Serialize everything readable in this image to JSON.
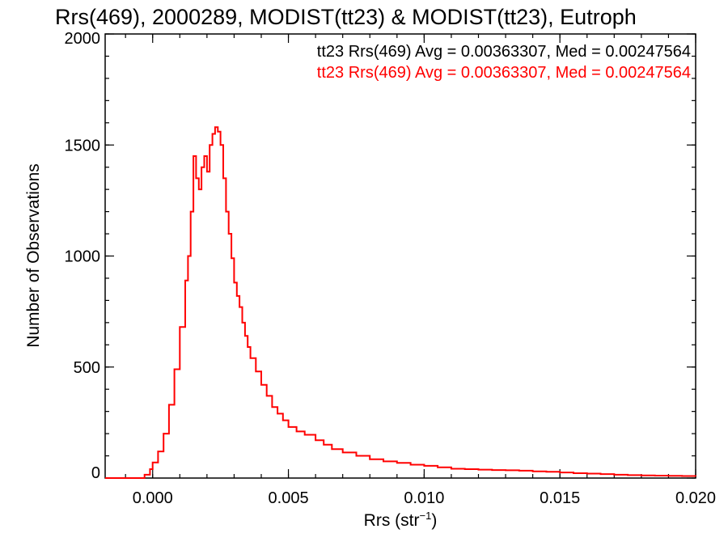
{
  "chart_data": {
    "type": "line",
    "title": "Rrs(469), 2000289, MODIST(tt23) & MODIST(tt23), Eutroph",
    "xlabel": "Rrs (str",
    "xlabel_sup": "−1",
    "xlabel_close": ")",
    "ylabel": "Number of Observations",
    "xlim": [
      -0.00175,
      0.02
    ],
    "ylim": [
      0,
      2000
    ],
    "x_ticks": [
      0.0,
      0.005,
      0.01,
      0.015,
      0.02
    ],
    "x_tick_labels": [
      "0.000",
      "0.005",
      "0.010",
      "0.015",
      "0.020"
    ],
    "y_ticks": [
      0,
      500,
      1000,
      1500,
      2000
    ],
    "y_tick_labels": [
      "0",
      "500",
      "1000",
      "1500",
      "2000"
    ],
    "grid": false,
    "legend_position": "top-right",
    "annotations": [
      {
        "text": "tt23 Rrs(469) Avg = 0.00363307, Med = 0.00247564",
        "color": "#000000"
      },
      {
        "text": "tt23 Rrs(469) Avg = 0.00363307, Med = 0.00247564",
        "color": "#ff0000"
      }
    ],
    "series": [
      {
        "color": "#ff0000",
        "step": true,
        "points": [
          [
            -0.0018,
            0
          ],
          [
            -0.0006,
            0
          ],
          [
            -0.0003,
            15
          ],
          [
            -0.0001,
            40
          ],
          [
            0.0,
            70
          ],
          [
            0.0002,
            120
          ],
          [
            0.0004,
            200
          ],
          [
            0.0006,
            330
          ],
          [
            0.0008,
            490
          ],
          [
            0.001,
            680
          ],
          [
            0.0012,
            890
          ],
          [
            0.0013,
            1000
          ],
          [
            0.0014,
            1200
          ],
          [
            0.0015,
            1450
          ],
          [
            0.0016,
            1350
          ],
          [
            0.0017,
            1300
          ],
          [
            0.0018,
            1400
          ],
          [
            0.0019,
            1450
          ],
          [
            0.002,
            1380
          ],
          [
            0.0021,
            1500
          ],
          [
            0.0022,
            1550
          ],
          [
            0.0023,
            1580
          ],
          [
            0.0024,
            1560
          ],
          [
            0.0025,
            1500
          ],
          [
            0.0026,
            1350
          ],
          [
            0.0027,
            1200
          ],
          [
            0.0028,
            1100
          ],
          [
            0.0029,
            990
          ],
          [
            0.003,
            880
          ],
          [
            0.0031,
            820
          ],
          [
            0.0032,
            770
          ],
          [
            0.0033,
            700
          ],
          [
            0.0034,
            640
          ],
          [
            0.0035,
            590
          ],
          [
            0.0036,
            540
          ],
          [
            0.0038,
            480
          ],
          [
            0.004,
            420
          ],
          [
            0.0042,
            370
          ],
          [
            0.0044,
            320
          ],
          [
            0.0046,
            290
          ],
          [
            0.0048,
            260
          ],
          [
            0.005,
            230
          ],
          [
            0.0053,
            210
          ],
          [
            0.0056,
            195
          ],
          [
            0.006,
            170
          ],
          [
            0.0063,
            150
          ],
          [
            0.0066,
            130
          ],
          [
            0.007,
            115
          ],
          [
            0.0075,
            100
          ],
          [
            0.008,
            85
          ],
          [
            0.0085,
            75
          ],
          [
            0.009,
            68
          ],
          [
            0.0095,
            60
          ],
          [
            0.01,
            55
          ],
          [
            0.0105,
            48
          ],
          [
            0.011,
            42
          ],
          [
            0.0115,
            40
          ],
          [
            0.012,
            38
          ],
          [
            0.0125,
            36
          ],
          [
            0.013,
            35
          ],
          [
            0.0135,
            33
          ],
          [
            0.014,
            30
          ],
          [
            0.0145,
            28
          ],
          [
            0.015,
            25
          ],
          [
            0.0155,
            22
          ],
          [
            0.016,
            20
          ],
          [
            0.0165,
            18
          ],
          [
            0.017,
            15
          ],
          [
            0.0175,
            13
          ],
          [
            0.018,
            12
          ],
          [
            0.0185,
            11
          ],
          [
            0.019,
            10
          ],
          [
            0.0195,
            9
          ],
          [
            0.02,
            8
          ]
        ]
      }
    ]
  }
}
